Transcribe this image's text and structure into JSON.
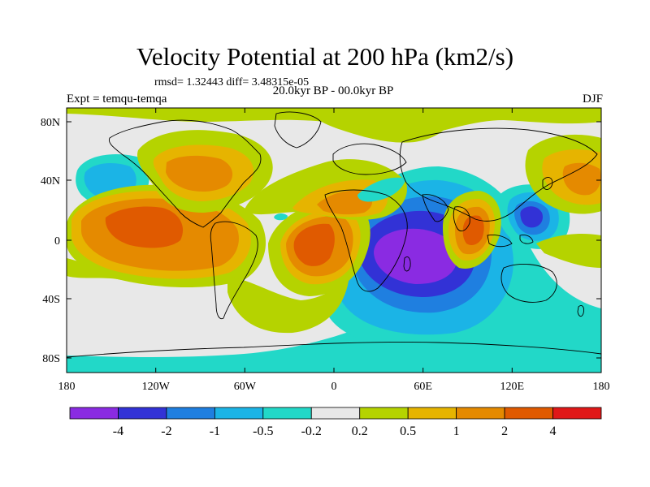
{
  "title": "Velocity Potential at 200 hPa (km2/s)",
  "stats": "rmsd= 1.32443 diff= 3.48315e-05",
  "experiment": "Expt = temqu-temqa",
  "period": "20.0kyr BP - 00.0kyr BP",
  "season": "DJF",
  "lat_labels": [
    "80N",
    "40N",
    "0",
    "40S",
    "80S"
  ],
  "lon_labels": [
    "180",
    "120W",
    "60W",
    "0",
    "60E",
    "120E",
    "180"
  ],
  "colorbar": {
    "colors": [
      "#8a2be2",
      "#3232d6",
      "#1f7fe0",
      "#1bb4e6",
      "#22d8c8",
      "#e8e8e8",
      "#b5d300",
      "#e6b400",
      "#e58a00",
      "#e05a00",
      "#e01818"
    ],
    "labels": [
      "-4",
      "-2",
      "-1",
      "-0.5",
      "-0.2",
      "0.2",
      "0.5",
      "1",
      "2",
      "4"
    ]
  }
}
